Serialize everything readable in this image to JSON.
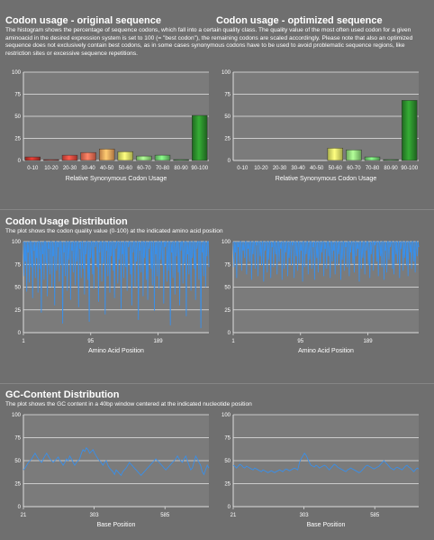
{
  "section1": {
    "title_left": "Codon usage - original sequence",
    "title_right": "Codon usage - optimized sequence",
    "desc": "The histogram shows the percentage of sequence codons, which fall into a certain quality class. The quality value of the most often used codon for a given aminoacid in the desired expression system is set to 100 (= \"best codon\"), the remaining codons are scaled accordingly. Please note that also an optimized sequence does not exclusively contain best codons, as in some cases synonymous codons have to be used to avoid problematic sequence regions, like restriction sites or excessive sequence repetitions."
  },
  "section2": {
    "title": "Codon Usage Distribution",
    "desc": "The plot shows the codon quality value (0-100) at the indicated amino acid position"
  },
  "section3": {
    "title": "GC-Content Distribution",
    "desc": "The plot shows the GC content in a 40bp window centered at the indicated nucleotide position"
  },
  "chart_data": [
    {
      "type": "bar",
      "id": "hist_original",
      "categories": [
        "0-10",
        "10-20",
        "20-30",
        "30-40",
        "40-50",
        "50-60",
        "60-70",
        "70-80",
        "80-90",
        "90-100"
      ],
      "values": [
        4,
        1,
        6,
        9,
        13,
        10,
        5,
        6,
        1,
        51
      ],
      "colors": [
        "#c0332b",
        "#c0332b",
        "#e0493d",
        "#ee6a52",
        "#f6a35b",
        "#e4ea66",
        "#8fe07a",
        "#6fce6f",
        "#3d9a3d",
        "#2b8a2b"
      ],
      "xlabel": "Relative Synonymous Codon Usage",
      "ylim": [
        0,
        100
      ],
      "yticks": [
        0,
        25,
        50,
        75,
        100
      ],
      "grid": true
    },
    {
      "type": "bar",
      "id": "hist_optimized",
      "categories": [
        "0-10",
        "10-20",
        "20-30",
        "30-40",
        "40-50",
        "50-60",
        "60-70",
        "70-80",
        "80-90",
        "90-100"
      ],
      "values": [
        0,
        0,
        0,
        0,
        0,
        14,
        12,
        4,
        1,
        68
      ],
      "colors": [
        "#c0332b",
        "#c0332b",
        "#e0493d",
        "#ee6a52",
        "#f6a35b",
        "#e4ea66",
        "#8fe07a",
        "#6fce6f",
        "#3d9a3d",
        "#2b8a2b"
      ],
      "xlabel": "Relative Synonymous Codon Usage",
      "ylim": [
        0,
        100
      ],
      "yticks": [
        0,
        25,
        50,
        75,
        100
      ],
      "grid": true
    },
    {
      "type": "line",
      "id": "cu_original",
      "xlabel": "Amino Acid Position",
      "xticks": [
        1,
        95,
        189
      ],
      "xlim": [
        1,
        260
      ],
      "ylim": [
        0,
        100
      ],
      "yticks": [
        0,
        25,
        50,
        75,
        100
      ],
      "color": "#3a8fe8",
      "y": [
        100,
        62,
        100,
        78,
        100,
        45,
        100,
        88,
        100,
        55,
        100,
        100,
        72,
        100,
        38,
        100,
        90,
        100,
        60,
        100,
        82,
        100,
        44,
        100,
        100,
        70,
        100,
        22,
        100,
        86,
        100,
        58,
        100,
        100,
        76,
        100,
        40,
        100,
        92,
        100,
        64,
        100,
        100,
        50,
        100,
        84,
        100,
        30,
        100,
        100,
        68,
        100,
        94,
        100,
        56,
        100,
        100,
        74,
        100,
        10,
        100,
        88,
        100,
        62,
        100,
        100,
        46,
        100,
        80,
        100,
        100,
        36,
        100,
        90,
        100,
        66,
        100,
        100,
        52,
        100,
        78,
        100,
        100,
        28,
        100,
        92,
        100,
        60,
        100,
        100,
        70,
        100,
        42,
        100,
        86,
        100,
        100,
        58,
        100,
        12,
        100,
        82,
        100,
        100,
        64,
        100,
        48,
        100,
        94,
        100,
        100,
        72,
        100,
        34,
        100,
        88,
        100,
        100,
        56,
        100,
        76,
        100,
        100,
        20,
        100,
        90,
        100,
        62,
        100,
        100,
        44,
        100,
        84,
        100,
        100,
        68,
        100,
        38,
        100,
        92,
        100,
        100,
        54,
        100,
        80,
        100,
        100,
        26,
        100,
        86,
        100,
        60,
        100,
        100,
        72,
        100,
        46,
        100,
        94,
        100,
        100,
        64,
        100,
        30,
        100,
        88,
        100,
        100,
        50,
        100,
        78,
        100,
        100,
        14,
        100,
        90,
        100,
        66,
        100,
        100,
        40,
        100,
        82,
        100,
        100,
        58,
        100,
        36,
        100,
        92,
        100,
        100,
        70,
        100,
        52,
        100,
        100,
        24,
        100,
        86,
        100,
        62,
        100,
        100,
        48,
        100,
        80,
        100,
        100,
        74,
        100,
        32,
        100,
        94,
        100,
        100,
        56,
        100,
        68,
        100,
        100,
        8,
        100,
        88,
        100,
        60,
        100,
        100,
        42,
        100,
        84,
        100,
        100,
        66,
        100,
        30,
        100,
        90,
        100,
        100,
        54,
        100,
        76,
        100,
        100,
        18,
        100,
        86,
        100,
        64,
        100,
        100,
        46,
        100,
        82,
        100,
        100,
        70,
        100,
        36,
        100,
        92,
        100,
        100,
        58,
        100,
        100,
        5,
        100,
        88,
        100,
        62,
        100,
        100,
        50,
        100,
        84,
        100,
        100,
        72
      ],
      "grid": true
    },
    {
      "type": "line",
      "id": "cu_optimized",
      "xlabel": "Amino Acid Position",
      "xticks": [
        1,
        95,
        189
      ],
      "xlim": [
        1,
        260
      ],
      "ylim": [
        0,
        100
      ],
      "yticks": [
        0,
        25,
        50,
        75,
        100
      ],
      "color": "#3a8fe8",
      "y": [
        100,
        72,
        100,
        88,
        100,
        60,
        100,
        94,
        100,
        76,
        100,
        100,
        68,
        100,
        90,
        100,
        82,
        100,
        100,
        64,
        100,
        92,
        100,
        78,
        100,
        100,
        58,
        100,
        86,
        100,
        100,
        70,
        100,
        96,
        100,
        62,
        100,
        100,
        84,
        100,
        74,
        100,
        100,
        56,
        100,
        90,
        100,
        100,
        66,
        100,
        80,
        100,
        100,
        60,
        100,
        94,
        100,
        72,
        100,
        100,
        86,
        100,
        64,
        100,
        100,
        78,
        100,
        92,
        100,
        58,
        100,
        100,
        70,
        100,
        88,
        100,
        100,
        62,
        100,
        82,
        100,
        100,
        74,
        100,
        96,
        100,
        60,
        100,
        100,
        84,
        100,
        68,
        100,
        100,
        76,
        100,
        90,
        100,
        56,
        100,
        100,
        72,
        100,
        86,
        100,
        100,
        64,
        100,
        80,
        100,
        100,
        70,
        100,
        94,
        100,
        58,
        100,
        100,
        82,
        100,
        66,
        100,
        100,
        76,
        100,
        88,
        100,
        100,
        62,
        100,
        92,
        100,
        70,
        100,
        100,
        84,
        100,
        60,
        100,
        100,
        78,
        100,
        90,
        100,
        64,
        100,
        100,
        74,
        100,
        86,
        100,
        100,
        58,
        100,
        80,
        100,
        100,
        68,
        100,
        94,
        100,
        72,
        100,
        100,
        62,
        100,
        88,
        100,
        100,
        76,
        100,
        66,
        100,
        100,
        84,
        100,
        92,
        100,
        56,
        100,
        100,
        70,
        100,
        82,
        100,
        100,
        64,
        100,
        90,
        100,
        100,
        74,
        100,
        60,
        100,
        86,
        100,
        100,
        68,
        100,
        96,
        100,
        100,
        78,
        100,
        62,
        100,
        100,
        84,
        100,
        72,
        100,
        100,
        58,
        100,
        90,
        100,
        66,
        100,
        100,
        80,
        100,
        94,
        100,
        100,
        70,
        100,
        64,
        100,
        100,
        86,
        100,
        76,
        100,
        100,
        60,
        100,
        92,
        100,
        100,
        68,
        100,
        82,
        100,
        100,
        74,
        100,
        62,
        100,
        100,
        88,
        100,
        70,
        100,
        100,
        78,
        100,
        66,
        100,
        100,
        84,
        100,
        94
      ],
      "grid": true
    },
    {
      "type": "line",
      "id": "gc_original",
      "xlabel": "Base Position",
      "xticks": [
        21,
        303,
        585
      ],
      "xlim": [
        21,
        760
      ],
      "ylim": [
        0,
        100
      ],
      "yticks": [
        0,
        25,
        50,
        75,
        100
      ],
      "color": "#3a8fe8",
      "y": [
        40,
        42,
        45,
        48,
        50,
        52,
        55,
        58,
        55,
        52,
        50,
        48,
        52,
        55,
        58,
        55,
        52,
        50,
        48,
        50,
        52,
        54,
        50,
        48,
        45,
        48,
        52,
        50,
        55,
        52,
        48,
        45,
        48,
        50,
        52,
        58,
        62,
        60,
        64,
        62,
        58,
        60,
        62,
        58,
        55,
        52,
        50,
        48,
        45,
        48,
        50,
        45,
        42,
        40,
        38,
        35,
        40,
        38,
        36,
        34,
        38,
        40,
        42,
        45,
        48,
        46,
        44,
        42,
        40,
        38,
        36,
        34,
        36,
        38,
        40,
        42,
        44,
        46,
        48,
        50,
        52,
        50,
        48,
        46,
        44,
        42,
        40,
        42,
        44,
        46,
        48,
        50,
        52,
        55,
        52,
        50,
        48,
        52,
        55,
        50,
        45,
        40,
        42,
        48,
        55,
        52,
        48,
        45,
        38,
        35,
        40,
        45,
        42
      ],
      "grid": true
    },
    {
      "type": "line",
      "id": "gc_optimized",
      "xlabel": "Base Position",
      "xticks": [
        21,
        303,
        585
      ],
      "xlim": [
        21,
        760
      ],
      "ylim": [
        0,
        100
      ],
      "yticks": [
        0,
        25,
        50,
        75,
        100
      ],
      "color": "#3a8fe8",
      "y": [
        45,
        44,
        42,
        44,
        46,
        45,
        43,
        42,
        44,
        43,
        42,
        41,
        40,
        42,
        41,
        40,
        39,
        38,
        40,
        39,
        38,
        37,
        38,
        39,
        38,
        37,
        38,
        39,
        40,
        39,
        38,
        40,
        41,
        40,
        39,
        40,
        41,
        42,
        41,
        40,
        48,
        52,
        55,
        58,
        56,
        52,
        48,
        45,
        44,
        43,
        45,
        44,
        42,
        43,
        44,
        45,
        44,
        42,
        40,
        42,
        44,
        46,
        45,
        43,
        42,
        41,
        40,
        39,
        38,
        40,
        41,
        42,
        41,
        40,
        39,
        38,
        37,
        38,
        40,
        42,
        44,
        45,
        44,
        43,
        42,
        41,
        42,
        43,
        44,
        46,
        48,
        50,
        48,
        46,
        44,
        42,
        41,
        40,
        42,
        43,
        42,
        41,
        40,
        42,
        44,
        45,
        43,
        42,
        40,
        38,
        40,
        42,
        41
      ],
      "grid": true
    }
  ]
}
